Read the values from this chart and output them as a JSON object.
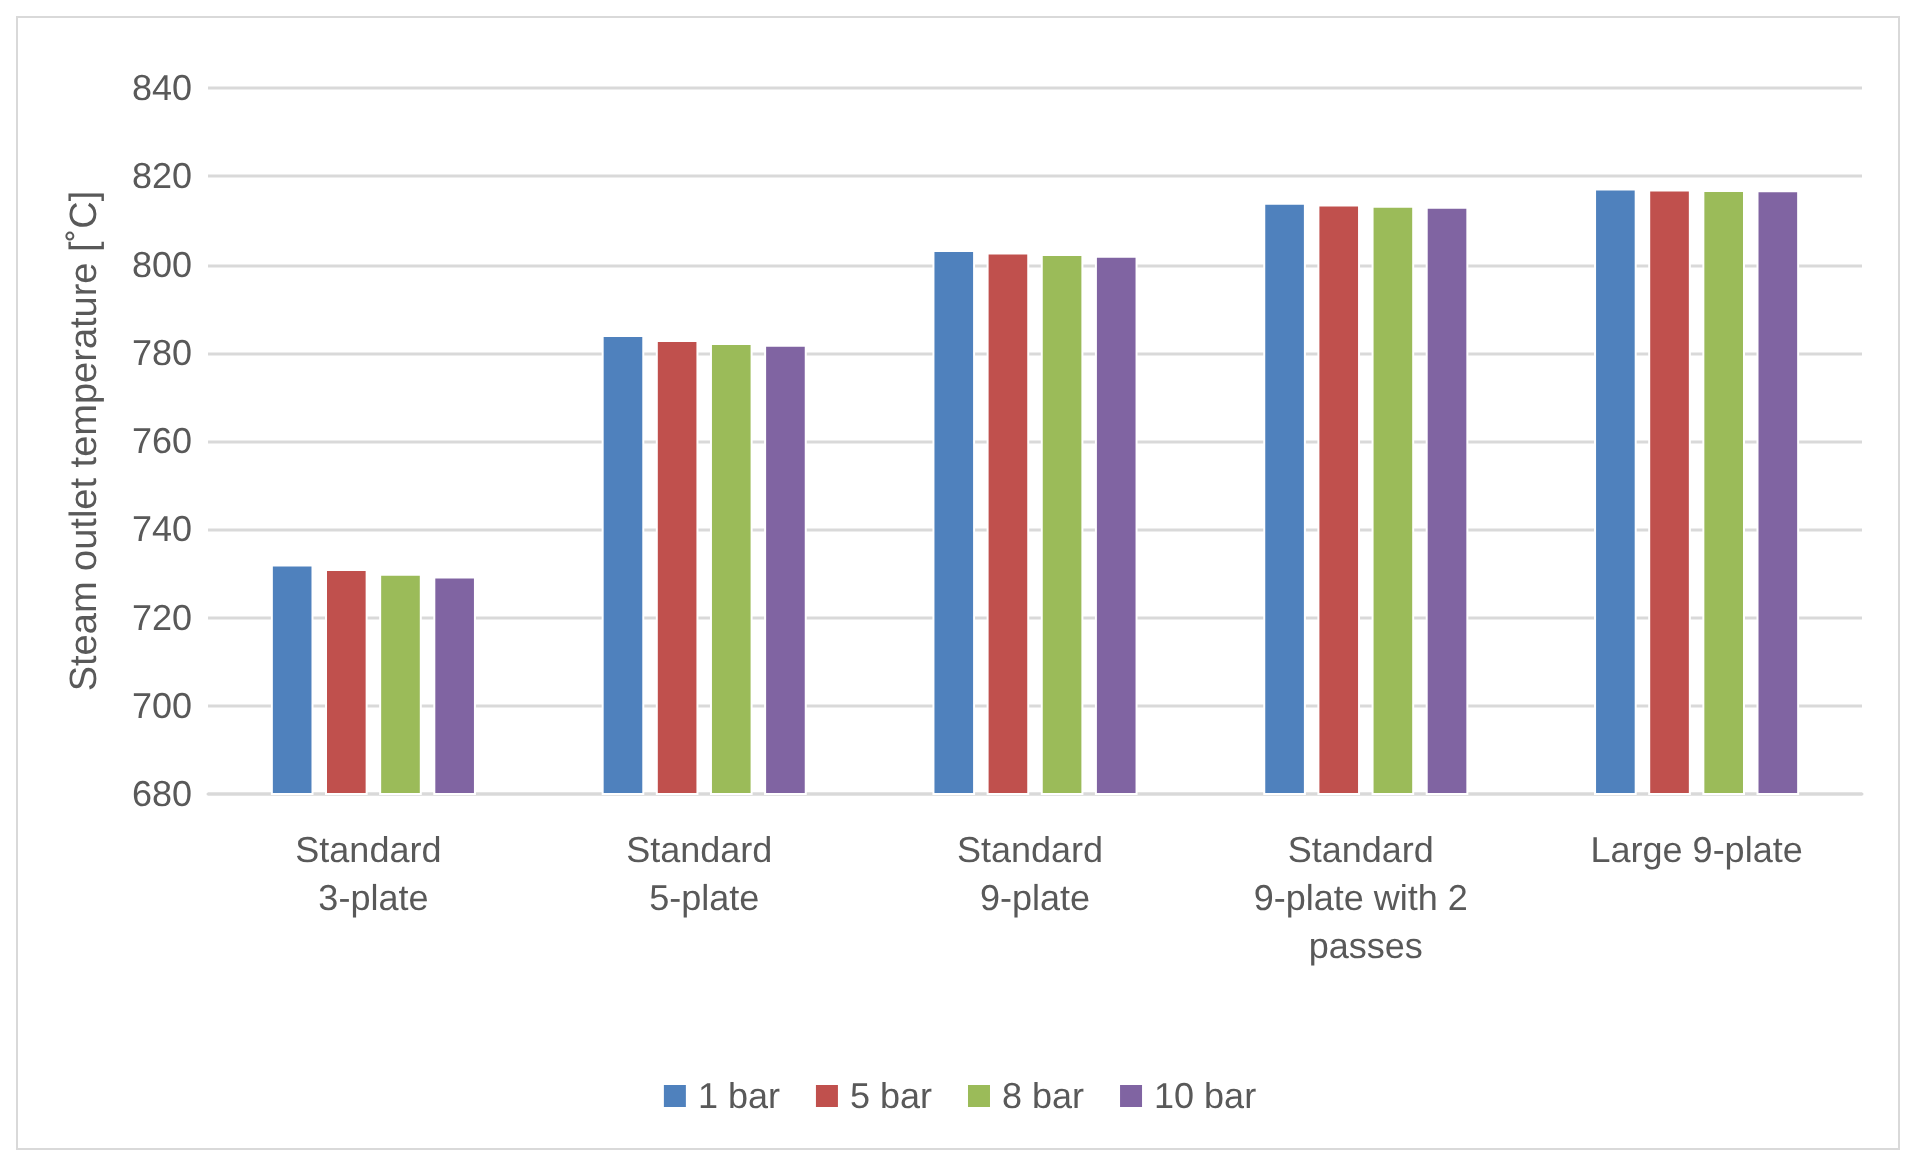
{
  "chart_data": {
    "type": "bar",
    "ylabel": "Steam outlet temperature [˚C]",
    "categories": [
      "Standard 3-plate",
      "Standard 5-plate",
      "Standard 9-plate",
      "Standard 9-plate with 2 passes",
      "Large 9-plate"
    ],
    "series": [
      {
        "name": "1 bar",
        "color": "#4f81bd",
        "values": [
          732,
          784,
          803.3,
          814,
          817.2
        ]
      },
      {
        "name": "5 bar",
        "color": "#c0504d",
        "values": [
          731,
          782.9,
          802.7,
          813.6,
          817
        ]
      },
      {
        "name": "8 bar",
        "color": "#9bbb59",
        "values": [
          729.9,
          782.2,
          802.4,
          813.3,
          816.9
        ]
      },
      {
        "name": "10 bar",
        "color": "#8064a2",
        "values": [
          729.3,
          781.8,
          802,
          813.1,
          816.8
        ]
      }
    ],
    "ylim": [
      680,
      840
    ],
    "yticks": [
      680,
      700,
      720,
      740,
      760,
      780,
      800,
      820,
      840
    ],
    "grid": "y",
    "legend": "bottom"
  }
}
